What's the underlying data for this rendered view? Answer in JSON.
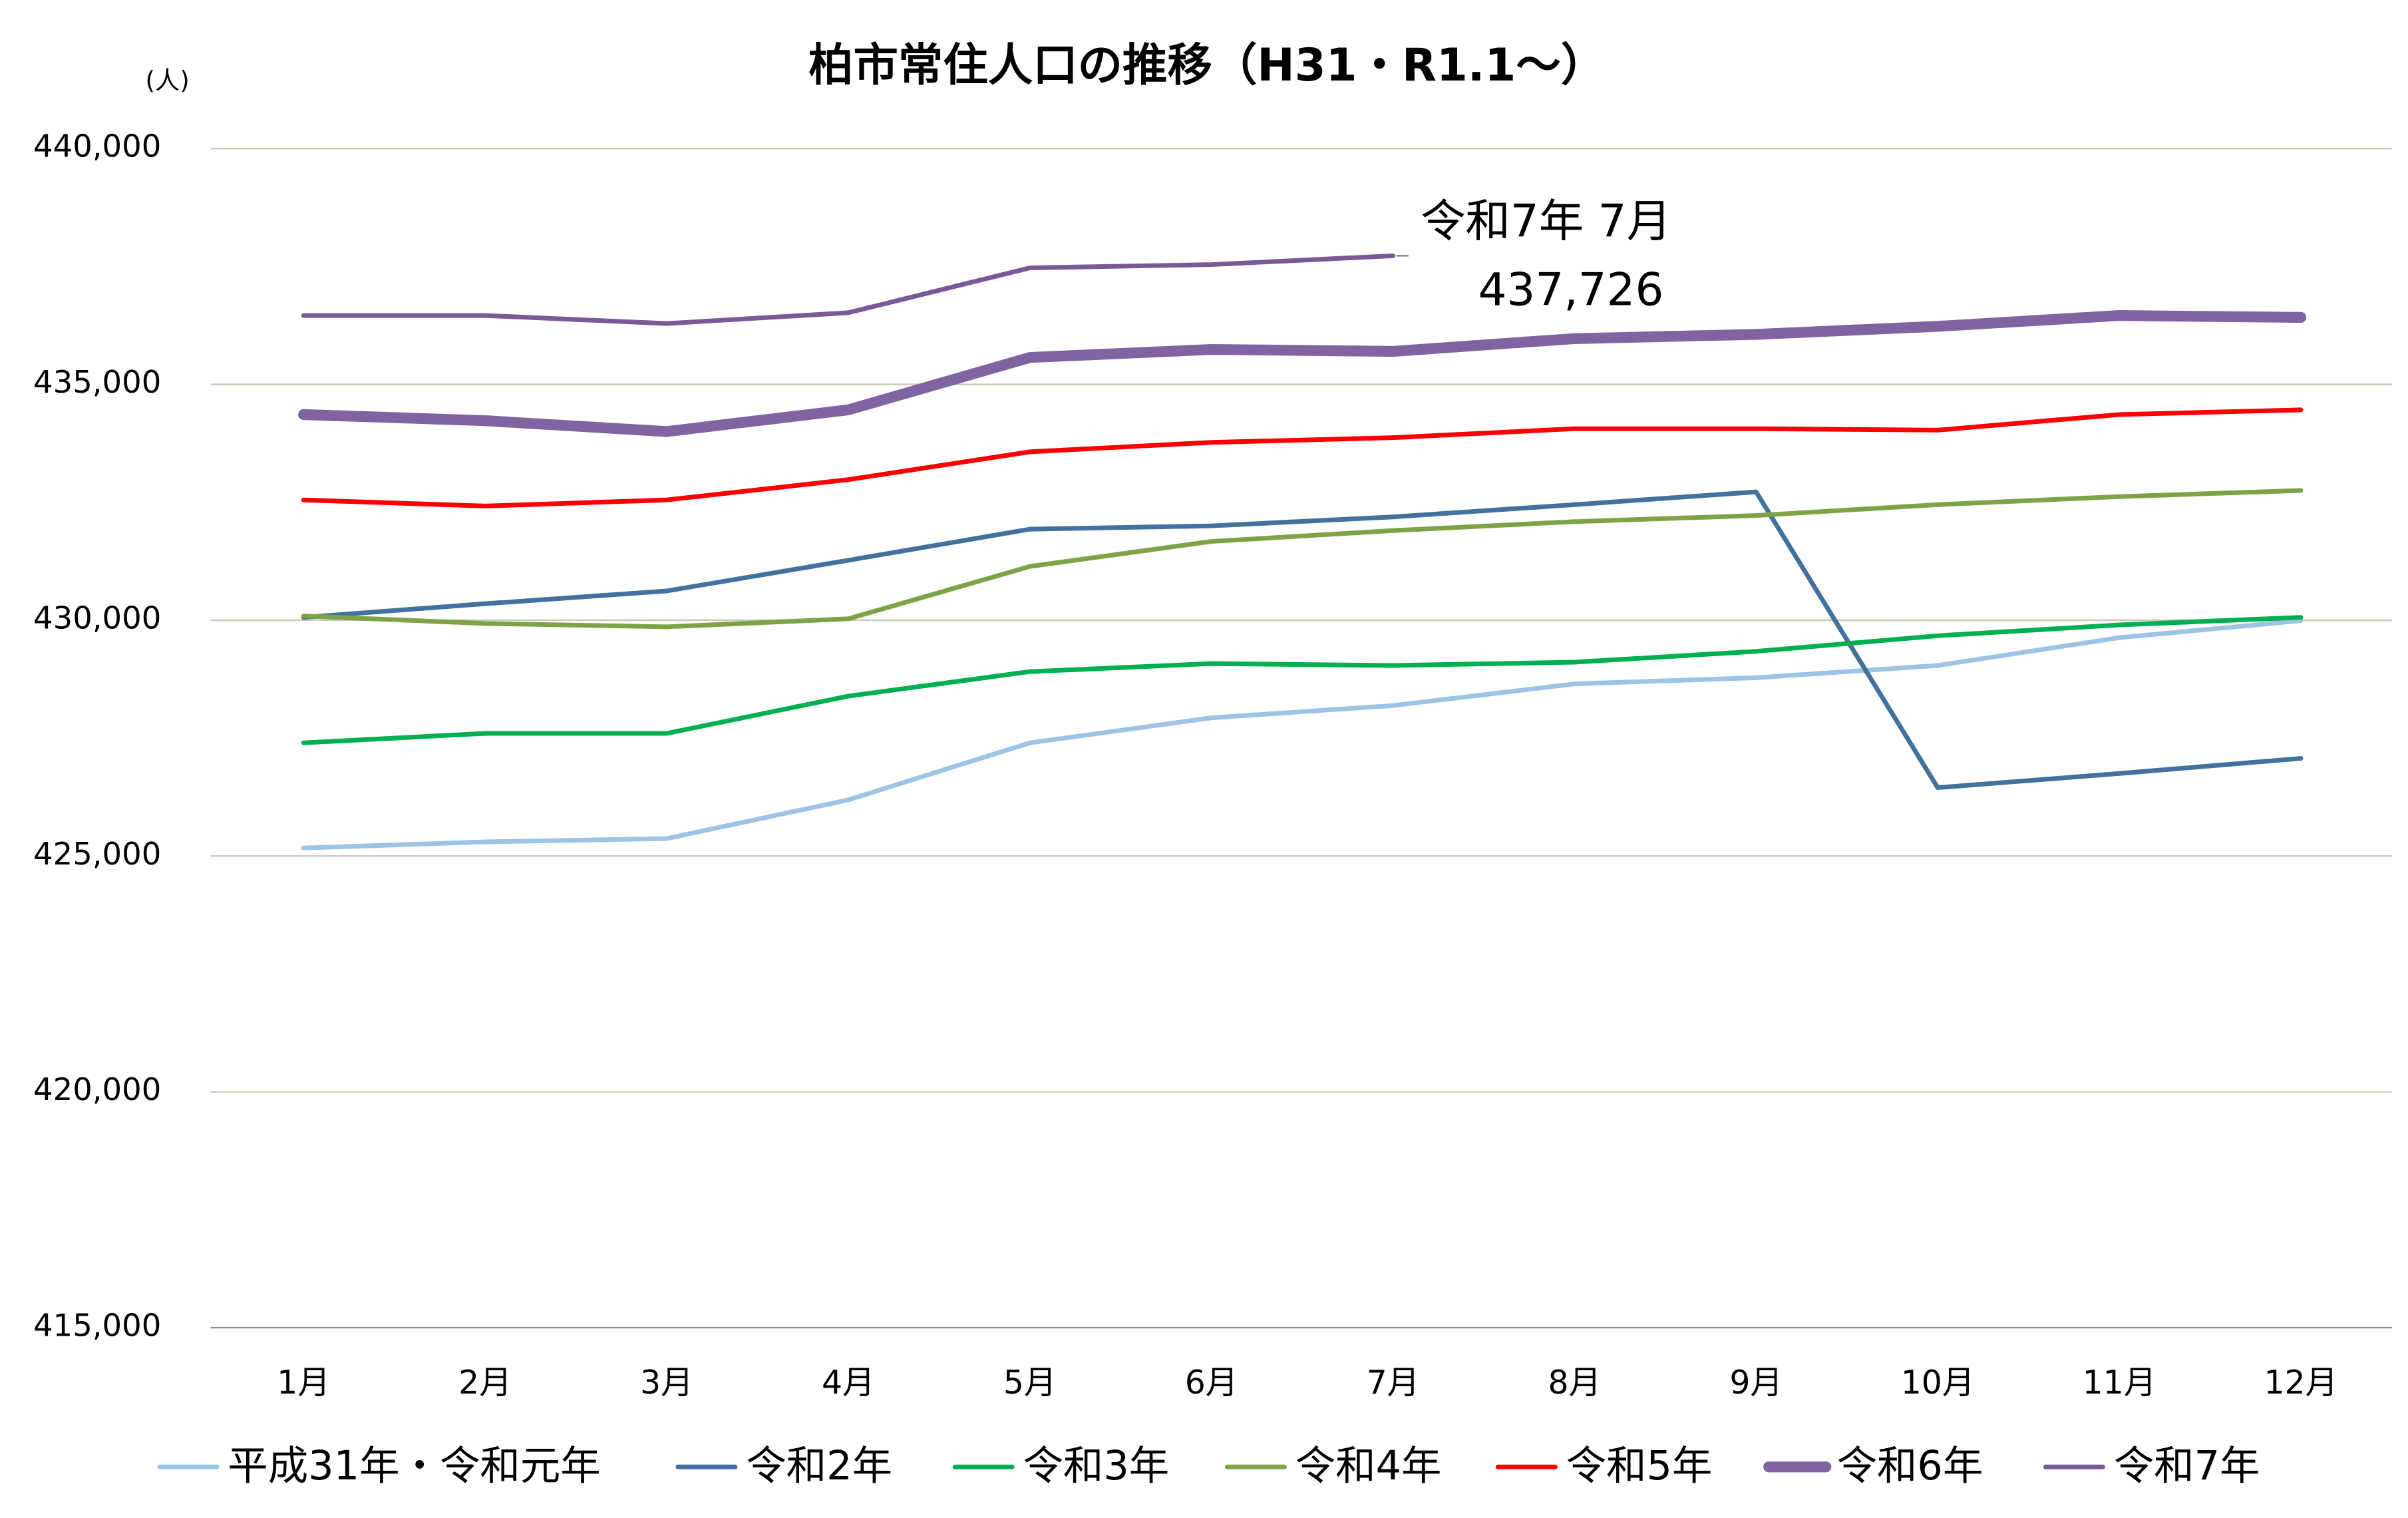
{
  "chart_data": {
    "type": "line",
    "title": "柏市常住人口の推移（H31・R1.1～）",
    "y_label": "(人)",
    "categories": [
      "1月",
      "2月",
      "3月",
      "4月",
      "5月",
      "6月",
      "7月",
      "8月",
      "9月",
      "10月",
      "11月",
      "12月"
    ],
    "ylim": [
      415000,
      440000
    ],
    "yticks": [
      {
        "value": 415000,
        "label": "415,000"
      },
      {
        "value": 420000,
        "label": "420,000"
      },
      {
        "value": 425000,
        "label": "425,000"
      },
      {
        "value": 430000,
        "label": "430,000"
      },
      {
        "value": 435000,
        "label": "435,000"
      },
      {
        "value": 440000,
        "label": "440,000"
      }
    ],
    "grid": true,
    "legend": "bottom",
    "series": [
      {
        "name": "平成31年・令和元年",
        "color": "#9dc3e6",
        "line_width": 3,
        "values": [
          425170,
          425300,
          425370,
          426190,
          427400,
          427930,
          428190,
          428650,
          428780,
          429040,
          429630,
          429990
        ]
      },
      {
        "name": "令和2年",
        "color": "#41719c",
        "line_width": 3,
        "values": [
          430060,
          430350,
          430620,
          431270,
          431930,
          432000,
          432190,
          432450,
          432720,
          426450,
          426750,
          427070
        ]
      },
      {
        "name": "令和3年",
        "color": "#00b050",
        "line_width": 3,
        "values": [
          427400,
          427600,
          427600,
          428390,
          428910,
          429080,
          429040,
          429110,
          429340,
          429670,
          429900,
          430060
        ]
      },
      {
        "name": "令和4年",
        "color": "#7ea346",
        "line_width": 3,
        "values": [
          430090,
          429930,
          429860,
          430030,
          431140,
          431670,
          431900,
          432090,
          432220,
          432450,
          432620,
          432750
        ]
      },
      {
        "name": "令和5年",
        "color": "#ff0000",
        "line_width": 3,
        "values": [
          432550,
          432420,
          432550,
          432980,
          433570,
          433770,
          433870,
          434060,
          434060,
          434030,
          434360,
          434460
        ]
      },
      {
        "name": "令和6年",
        "color": "#8064a2",
        "line_width": 7,
        "values": [
          434360,
          434230,
          434000,
          434460,
          435570,
          435740,
          435700,
          435970,
          436060,
          436230,
          436460,
          436420
        ]
      },
      {
        "name": "令和7年",
        "color": "#7a5a96",
        "line_width": 3,
        "values": [
          436460,
          436460,
          436290,
          436520,
          437470,
          437540,
          437726,
          null,
          null,
          null,
          null,
          null
        ],
        "value_labels": [
          null,
          null,
          null,
          null,
          null,
          null,
          "437,726",
          null,
          null,
          null,
          null,
          null
        ]
      }
    ],
    "annotations": [
      "令和7年 7月"
    ]
  }
}
